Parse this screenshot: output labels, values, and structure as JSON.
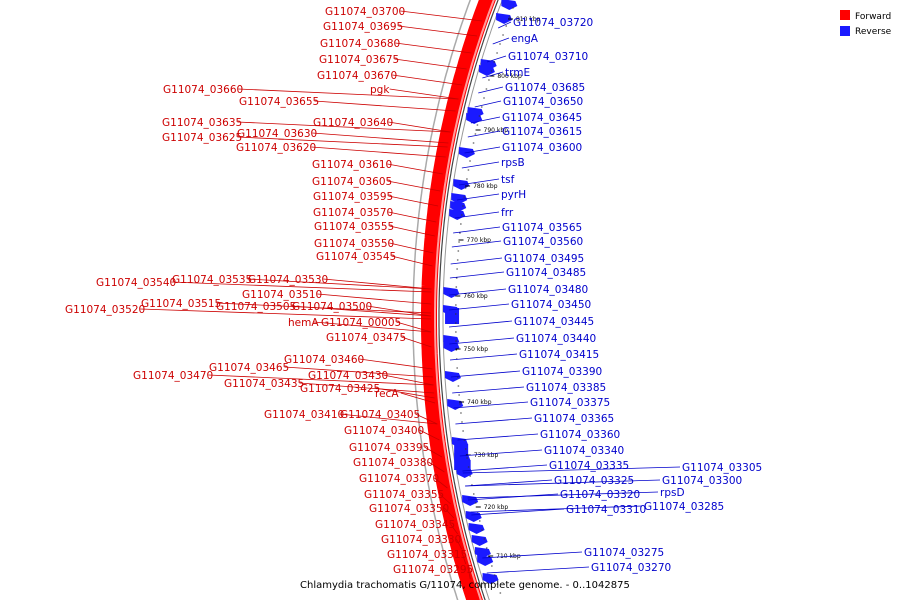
{
  "caption": "Chlamydia trachomatis G/11074, complete genome. - 0..1042875",
  "legend": {
    "forward": {
      "label": "Forward",
      "color": "#ff0000"
    },
    "reverse": {
      "label": "Reverse",
      "color": "#1a1aff"
    }
  },
  "colors": {
    "forward_text": "#cc0000",
    "reverse_text": "#0000cc",
    "backbone": "#ff0000",
    "feature": "#1a1aff"
  },
  "ticks": [
    "810 kbp",
    "800 kbp",
    "790 kbp",
    "780 kbp",
    "770 kbp",
    "760 kbp",
    "750 kbp",
    "740 kbp",
    "730 kbp",
    "720 kbp",
    "710 kbp"
  ],
  "forward_labels": [
    "G11074_03700",
    "G11074_03695",
    "G11074_03680",
    "G11074_03675",
    "G11074_03670",
    "G11074_03660",
    "pgk",
    "G11074_03655",
    "G11074_03640",
    "G11074_03635",
    "G11074_03630",
    "G11074_03625",
    "G11074_03620",
    "G11074_03610",
    "G11074_03605",
    "G11074_03595",
    "G11074_03570",
    "G11074_03555",
    "G11074_03550",
    "G11074_03545",
    "G11074_03540",
    "G11074_03535",
    "G11074_03530",
    "G11074_03510",
    "G11074_03520",
    "G11074_03515",
    "G11074_03505",
    "G11074_03500",
    "hemA",
    "G11074_00005",
    "G11074_03475",
    "G11074_03460",
    "G11074_03465",
    "G11074_03470",
    "G11074_03430",
    "G11074_03435",
    "G11074_03425",
    "recA",
    "G11074_03410",
    "G11074_03405",
    "G11074_03400",
    "G11074_03395",
    "G11074_03380",
    "G11074_03370",
    "G11074_03355",
    "G11074_03350",
    "G11074_03345",
    "G11074_03330",
    "G11074_03315",
    "G11074_03295"
  ],
  "reverse_labels": [
    "G11074_03720",
    "engA",
    "G11074_03710",
    "trmE",
    "G11074_03685",
    "G11074_03650",
    "G11074_03645",
    "G11074_03615",
    "G11074_03600",
    "rpsB",
    "tsf",
    "pyrH",
    "frr",
    "G11074_03565",
    "G11074_03560",
    "G11074_03495",
    "G11074_03485",
    "G11074_03480",
    "G11074_03450",
    "G11074_03445",
    "G11074_03440",
    "G11074_03415",
    "G11074_03390",
    "G11074_03385",
    "G11074_03375",
    "G11074_03365",
    "G11074_03360",
    "G11074_03340",
    "G11074_03335",
    "G11074_03325",
    "G11074_03320",
    "G11074_03310",
    "G11074_03305",
    "G11074_03300",
    "rpsD",
    "G11074_03285",
    "G11074_03275",
    "G11074_03270"
  ]
}
